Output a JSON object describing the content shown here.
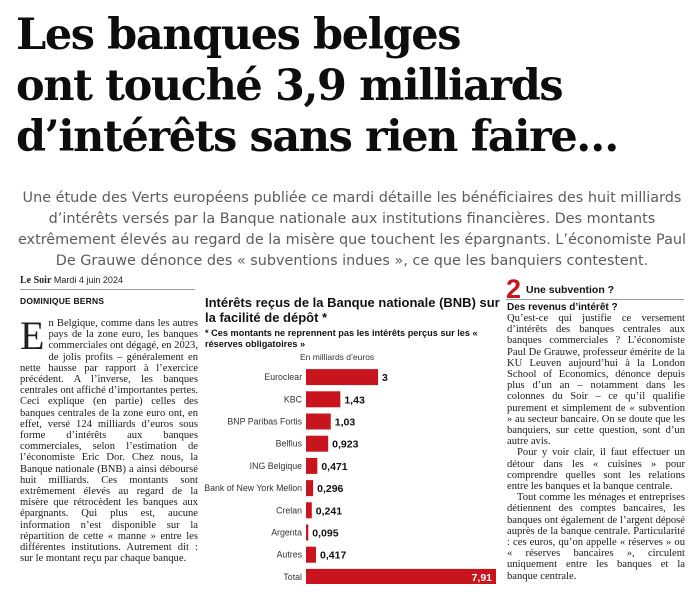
{
  "headline": {
    "line1": "Les banques belges",
    "line2": "ont touché 3,9 milliards",
    "line3": "d’intérêts sans rien faire…"
  },
  "lead": "Une étude des Verts européens publiée ce mardi détaille les bénéficiaires des huit milliards d’intérêts versés par la Banque nationale aux institutions financières. Des montants extrêmement élevés au regard de la misère que touchent les épargnants. L’économiste Paul De Grauwe dénonce des « subventions indues », ce que les banquiers contestent.",
  "meta": {
    "source": "Le Soir",
    "date": "Mardi 4 juin 2024"
  },
  "author": "DOMINIQUE BERNS",
  "article": {
    "dropcap": "E",
    "body": "n Belgique, comme dans les autres pays de la zone euro, les banques commerciales ont dégagé, en 2023, de jolis profits – généralement en nette hausse par rapport à l’exercice précédent. A l’inverse, les banques centrales ont affiché d’importantes pertes. Ceci explique (en partie) celles des banques centrales de la zone euro ont, en effet, versé 124 milliards d’euros sous forme d’intérêts aux banques commerciales, selon l’estimation de l’économiste Eric Dor. Chez nous, la Banque nationale (BNB) a ainsi déboursé huit milliards. Ces montants sont extrêmement élevés au regard de la misère que rétrocèdent les banques aux épargnants. Qui plus est, aucune information n’est disponible sur la répartition de cette « manne » entre les différentes institutions. Autrement dit : sur le montant reçu par chaque banque."
  },
  "chart": {
    "title": "Intérêts reçus de la Banque nationale (BNB) sur la facilité de dépôt *",
    "note": "* Ces montants ne reprennent pas les intérêts perçus sur les « réserves obligatoires »",
    "unit": "En milliards d’euros"
  },
  "chart_data": {
    "type": "bar",
    "orientation": "horizontal",
    "categories": [
      "Euroclear",
      "KBC",
      "BNP Paribas Fortis",
      "Belfius",
      "ING Belgique",
      "Bank of New York Mellon",
      "Crelan",
      "Argenta",
      "Autres",
      "Total"
    ],
    "values": [
      3,
      1.43,
      1.03,
      0.923,
      0.471,
      0.296,
      0.241,
      0.095,
      0.417,
      7.91
    ],
    "value_labels": [
      "3",
      "1,43",
      "1,03",
      "0,923",
      "0,471",
      "0,296",
      "0,241",
      "0,095",
      "0,417",
      "7,91"
    ],
    "title": "Intérêts reçus de la Banque nationale (BNB) sur la facilité de dépôt *",
    "xlabel": "En milliards d’euros",
    "ylabel": "",
    "xlim": [
      0,
      7.91
    ],
    "color": "#c8141c",
    "grid": false
  },
  "sidebar": {
    "number": "2",
    "kicker": "Une subvention ?",
    "question": "Des revenus d’intérêt ?",
    "p1": "Qu’est-ce qui justifie ce versement d’intérêts des banques centrales aux banques commerciales ? L’économiste Paul De Grauwe, professeur émérite de la KU Leuven aujourd’hui à la London School of Economics, dénonce depuis plus d’un an – notamment dans les colonnes du Soir – ce qu’il qualifie purement et simplement de « subvention » au secteur bancaire. On se doute que les banquiers, sur cette question, sont d’un autre avis.",
    "p2": "Pour y voir clair, il faut effectuer un détour dans les « cuisines » pour comprendre quelles sont les relations entre les banques et la banque centrale.",
    "p3": "Tout comme les ménages et entreprises détiennent des comptes bancaires, les banques ont également de l’argent déposé auprès de la banque centrale. Particularité : ces euros, qu’on appelle « réserves » ou « réserves bancaires », circulent uniquement entre les banques et la banque centrale."
  }
}
